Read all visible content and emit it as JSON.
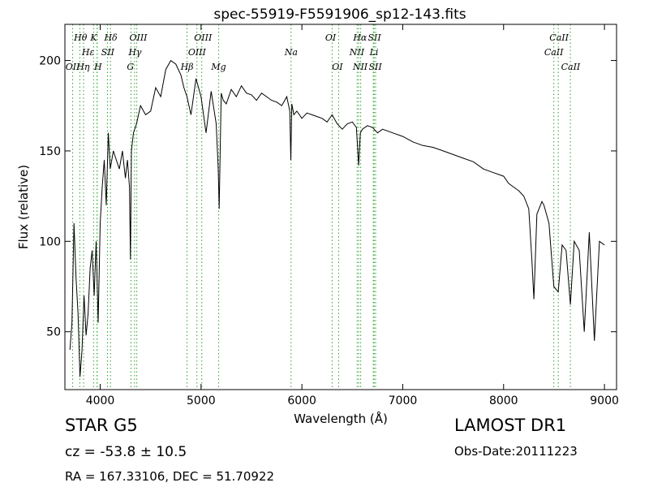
{
  "chart_data": {
    "type": "line",
    "title": "spec-55919-F5591906_sp12-143.fits",
    "xlabel": "Wavelength (Å)",
    "ylabel": "Flux (relative)",
    "xlim": [
      3650,
      9120
    ],
    "ylim": [
      18,
      220
    ],
    "x_ticks": [
      4000,
      5000,
      6000,
      7000,
      8000,
      9000
    ],
    "y_ticks": [
      50,
      100,
      150,
      200
    ],
    "grid": false,
    "legend": "none",
    "line_color": "#000000",
    "marker_color": "#2ca02c",
    "series": [
      {
        "x": [
          3700,
          3720,
          3740,
          3760,
          3780,
          3800,
          3820,
          3840,
          3860,
          3880,
          3900,
          3920,
          3940,
          3960,
          3980,
          4000,
          4020,
          4040,
          4060,
          4080,
          4100,
          4130,
          4160,
          4190,
          4220,
          4250,
          4270,
          4290,
          4300,
          4310,
          4330,
          4360,
          4400,
          4450,
          4500,
          4550,
          4600,
          4650,
          4700,
          4750,
          4800,
          4830,
          4861,
          4880,
          4900,
          4950,
          5000,
          5050,
          5100,
          5150,
          5170,
          5180,
          5190,
          5200,
          5220,
          5250,
          5300,
          5350,
          5400,
          5450,
          5500,
          5550,
          5600,
          5650,
          5700,
          5750,
          5800,
          5850,
          5880,
          5890,
          5900,
          5920,
          5950,
          6000,
          6050,
          6100,
          6150,
          6200,
          6250,
          6300,
          6350,
          6400,
          6450,
          6500,
          6540,
          6563,
          6580,
          6600,
          6650,
          6700,
          6750,
          6800,
          6900,
          7000,
          7100,
          7200,
          7300,
          7400,
          7500,
          7600,
          7700,
          7800,
          7900,
          8000,
          8050,
          8100,
          8150,
          8200,
          8250,
          8280,
          8300,
          8330,
          8380,
          8400,
          8450,
          8498,
          8542,
          8580,
          8620,
          8662,
          8700,
          8750,
          8800,
          8850,
          8900,
          8950,
          9000
        ],
        "y": [
          40,
          55,
          110,
          80,
          60,
          25,
          40,
          70,
          48,
          60,
          85,
          95,
          70,
          100,
          55,
          110,
          130,
          145,
          120,
          160,
          140,
          150,
          145,
          140,
          150,
          135,
          145,
          130,
          90,
          150,
          160,
          165,
          175,
          170,
          172,
          185,
          180,
          195,
          200,
          198,
          192,
          185,
          180,
          175,
          170,
          190,
          180,
          160,
          183,
          165,
          140,
          118,
          150,
          182,
          178,
          176,
          184,
          180,
          186,
          182,
          181,
          178,
          182,
          180,
          178,
          177,
          175,
          180,
          172,
          145,
          176,
          170,
          172,
          168,
          171,
          170,
          169,
          168,
          166,
          170,
          165,
          162,
          165,
          166,
          163,
          142,
          160,
          162,
          164,
          163,
          160,
          162,
          160,
          158,
          155,
          153,
          152,
          150,
          148,
          146,
          144,
          140,
          138,
          136,
          132,
          130,
          128,
          125,
          118,
          90,
          68,
          115,
          122,
          120,
          110,
          75,
          72,
          98,
          95,
          65,
          100,
          95,
          50,
          105,
          45,
          100,
          98
        ]
      }
    ],
    "line_markers": [
      {
        "label": "OII",
        "x": 3727,
        "label_x": 3727,
        "row": 3
      },
      {
        "label": "Hθ",
        "x": 3798,
        "label_x": 3805,
        "row": 1
      },
      {
        "label": "Hη",
        "x": 3835,
        "label_x": 3830,
        "row": 3
      },
      {
        "label": "K",
        "x": 3934,
        "label_x": 3935,
        "row": 1
      },
      {
        "label": "H",
        "x": 3969,
        "label_x": 3978,
        "row": 3
      },
      {
        "label": "Hε",
        "x": 3970,
        "label_x": 3880,
        "row": 2
      },
      {
        "label": "SII",
        "x": 4072,
        "label_x": 4075,
        "row": 2
      },
      {
        "label": "Hδ",
        "x": 4102,
        "label_x": 4105,
        "row": 1
      },
      {
        "label": "G",
        "x": 4305,
        "label_x": 4300,
        "row": 3
      },
      {
        "label": "Hγ",
        "x": 4341,
        "label_x": 4345,
        "row": 2
      },
      {
        "label": "OIII",
        "x": 4363,
        "label_x": 4378,
        "row": 1
      },
      {
        "label": "Hβ",
        "x": 4861,
        "label_x": 4861,
        "row": 3
      },
      {
        "label": "OIII",
        "x": 4959,
        "label_x": 4960,
        "row": 2
      },
      {
        "label": "OIII",
        "x": 5007,
        "label_x": 5020,
        "row": 1
      },
      {
        "label": "Mg",
        "x": 5175,
        "label_x": 5175,
        "row": 3
      },
      {
        "label": "Na",
        "x": 5893,
        "label_x": 5893,
        "row": 2
      },
      {
        "label": "OI",
        "x": 6300,
        "label_x": 6285,
        "row": 1
      },
      {
        "label": "OI",
        "x": 6364,
        "label_x": 6352,
        "row": 3
      },
      {
        "label": "NII",
        "x": 6548,
        "label_x": 6545,
        "row": 2
      },
      {
        "label": "Hα",
        "x": 6563,
        "label_x": 6577,
        "row": 1
      },
      {
        "label": "NII",
        "x": 6583,
        "label_x": 6578,
        "row": 3
      },
      {
        "label": "Li",
        "x": 6708,
        "label_x": 6715,
        "row": 2
      },
      {
        "label": "SII",
        "x": 6716,
        "label_x": 6720,
        "row": 1
      },
      {
        "label": "SII",
        "x": 6731,
        "label_x": 6728,
        "row": 3
      },
      {
        "label": "CaII",
        "x": 8498,
        "label_x": 8498,
        "row": 2
      },
      {
        "label": "CaII",
        "x": 8542,
        "label_x": 8550,
        "row": 1
      },
      {
        "label": "CaII",
        "x": 8662,
        "label_x": 8665,
        "row": 3
      }
    ]
  },
  "info": {
    "class_label": "STAR   G5",
    "survey": "LAMOST DR1",
    "cz": "cz = -53.8 ± 10.5",
    "obs_date": "Obs-Date:20111223",
    "radec": "RA = 167.33106, DEC = 51.70922"
  }
}
